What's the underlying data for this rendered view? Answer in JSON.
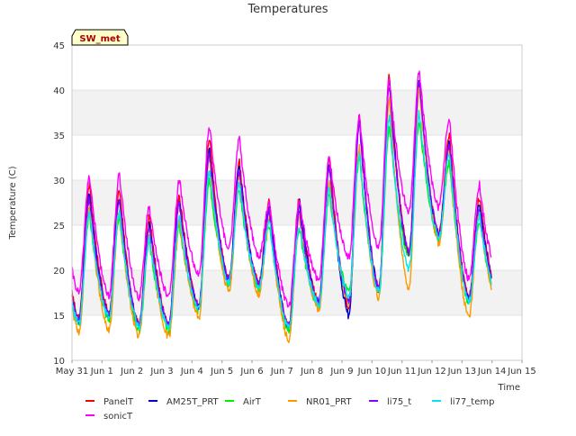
{
  "chart_data": {
    "type": "line",
    "title": "Temperatures",
    "xlabel": "Time",
    "ylabel": "Temperature (C)",
    "ylim": [
      10,
      45
    ],
    "yticks": [
      10,
      15,
      20,
      25,
      30,
      35,
      40,
      45
    ],
    "xlim": [
      "2016-05-31",
      "2016-06-15"
    ],
    "xtick_labels": [
      "May 31",
      "Jun 1",
      "Jun 2",
      "Jun 3",
      "Jun 4",
      "Jun 5",
      "Jun 6",
      "Jun 7",
      "Jun 8",
      "Jun 9",
      "Jun 10",
      "Jun 11",
      "Jun 12",
      "Jun 13",
      "Jun 14",
      "Jun 15"
    ],
    "grid": "horizontal alternating bands",
    "legend_position": "bottom",
    "site_label": "SW_met",
    "day_labels": [
      "May 31",
      "Jun 1",
      "Jun 2",
      "Jun 3",
      "Jun 4",
      "Jun 5",
      "Jun 6",
      "Jun 7",
      "Jun 8",
      "Jun 9",
      "Jun 10",
      "Jun 11",
      "Jun 12",
      "Jun 13",
      "Jun 14"
    ],
    "series": [
      {
        "name": "PanelT",
        "color": "#ff0000",
        "min": [
          14.8,
          15.3,
          14.0,
          14.0,
          16.0,
          19.0,
          18.5,
          13.8,
          16.5,
          16.0,
          18.0,
          22.0,
          24.0,
          17.0,
          17.0
        ],
        "max": [
          29.5,
          29.0,
          26.0,
          28.5,
          34.8,
          32.0,
          27.8,
          28.0,
          32.5,
          37.2,
          41.5,
          40.5,
          35.2,
          28.0
        ]
      },
      {
        "name": "AM25T_PRT",
        "color": "#0000cc",
        "min": [
          14.3,
          15.0,
          13.8,
          13.8,
          15.8,
          18.8,
          18.3,
          13.6,
          16.3,
          15.0,
          17.8,
          21.8,
          23.8,
          16.8,
          16.8
        ],
        "max": [
          28.5,
          28.0,
          25.0,
          27.8,
          33.5,
          31.5,
          27.0,
          27.5,
          31.8,
          36.8,
          40.8,
          40.8,
          34.0,
          27.5
        ]
      },
      {
        "name": "AirT",
        "color": "#00ee00",
        "min": [
          13.8,
          14.5,
          13.3,
          13.3,
          15.5,
          18.5,
          18.0,
          13.2,
          16.0,
          17.5,
          17.5,
          21.5,
          23.5,
          16.3,
          16.3
        ],
        "max": [
          26.0,
          26.0,
          23.0,
          25.0,
          30.0,
          29.0,
          25.0,
          24.5,
          28.5,
          32.5,
          36.0,
          36.5,
          32.0,
          25.5
        ]
      },
      {
        "name": "NR01_PRT",
        "color": "#ff9900",
        "min": [
          13.2,
          13.2,
          12.7,
          12.6,
          14.8,
          17.5,
          17.2,
          12.3,
          15.5,
          16.5,
          17.0,
          18.0,
          23.0,
          14.7,
          15.5
        ],
        "max": [
          27.0,
          26.5,
          24.0,
          25.5,
          32.5,
          30.5,
          26.0,
          26.0,
          30.0,
          33.5,
          39.0,
          40.0,
          33.5,
          26.5
        ]
      },
      {
        "name": "li75_t",
        "color": "#8800ff",
        "min": [
          14.5,
          15.0,
          14.0,
          14.0,
          16.0,
          19.0,
          18.5,
          13.8,
          16.5,
          16.5,
          18.0,
          22.0,
          24.0,
          17.0,
          17.0
        ],
        "max": [
          28.0,
          27.8,
          25.0,
          27.5,
          33.0,
          31.0,
          26.5,
          26.5,
          31.5,
          36.5,
          40.5,
          41.0,
          34.0,
          27.0
        ]
      },
      {
        "name": "li77_temp",
        "color": "#00e5ee",
        "min": [
          14.0,
          14.8,
          13.7,
          13.7,
          15.7,
          18.7,
          18.2,
          13.5,
          16.2,
          17.0,
          17.7,
          20.0,
          23.5,
          16.5,
          16.5
        ],
        "max": [
          26.5,
          26.5,
          23.5,
          26.0,
          31.0,
          29.5,
          25.5,
          25.0,
          29.0,
          33.0,
          37.0,
          37.5,
          33.0,
          26.0
        ]
      },
      {
        "name": "sonicT",
        "color": "#ff00ff",
        "min": [
          17.5,
          17.2,
          17.0,
          17.0,
          19.5,
          22.5,
          21.5,
          16.0,
          19.0,
          21.5,
          22.5,
          26.5,
          27.0,
          19.0,
          19.0
        ],
        "max": [
          30.5,
          30.5,
          27.0,
          30.0,
          36.0,
          34.5,
          27.5,
          27.5,
          32.5,
          37.0,
          41.0,
          42.0,
          37.0,
          29.5
        ]
      }
    ]
  }
}
